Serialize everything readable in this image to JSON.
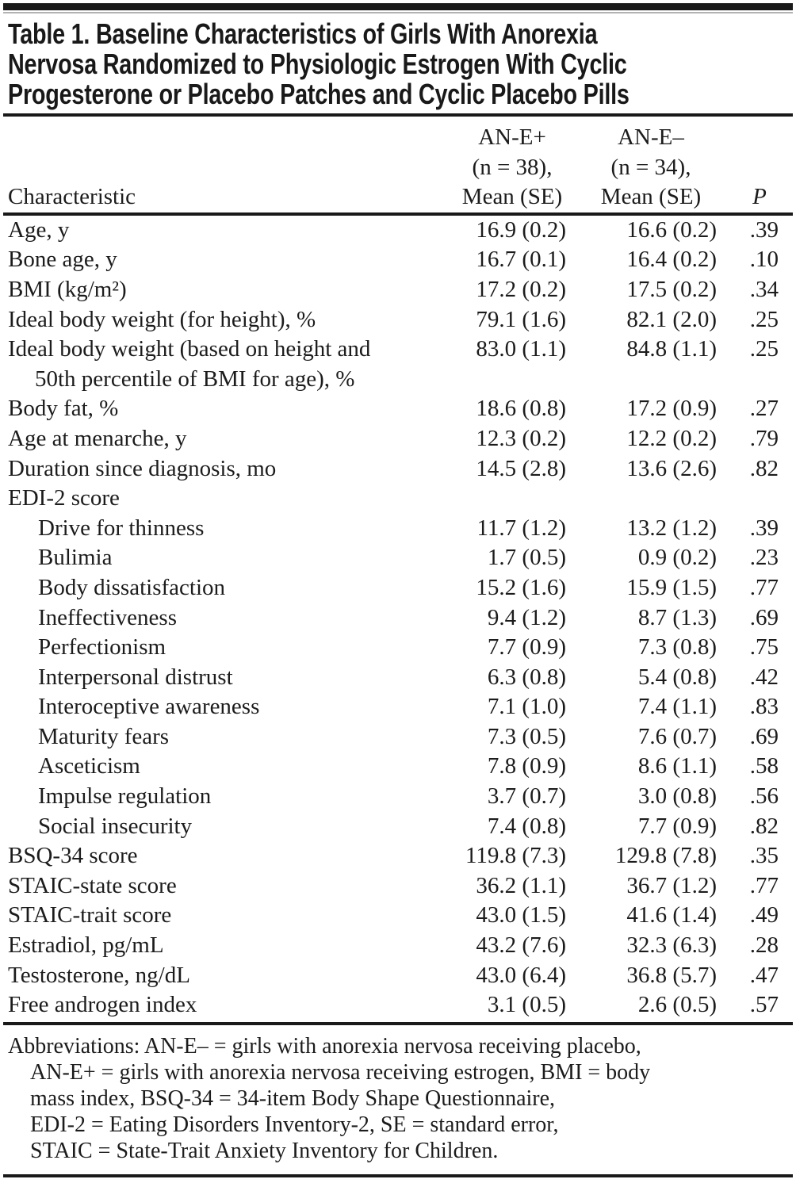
{
  "colors": {
    "background": "#ffffff",
    "text": "#1c1c1c",
    "rule": "#191919"
  },
  "table": {
    "title_lines": [
      "Table 1. Baseline Characteristics of Girls With Anorexia",
      "Nervosa Randomized to Physiologic Estrogen With Cyclic",
      "Progesterone or Placebo Patches and Cyclic Placebo Pills"
    ],
    "columns": {
      "characteristic": "Characteristic",
      "group1": {
        "line1": "AN-E+",
        "line2": "(n = 38),",
        "line3": "Mean (SE)"
      },
      "group2": {
        "line1": "AN-E–",
        "line2": "(n = 34),",
        "line3": "Mean (SE)"
      },
      "p": "P"
    },
    "rows": [
      {
        "label": "Age, y",
        "indent": 0,
        "values": [
          "16.9 (0.2)",
          "16.6 (0.2)",
          ".39"
        ]
      },
      {
        "label": "Bone age, y",
        "indent": 0,
        "values": [
          "16.7 (0.1)",
          "16.4 (0.2)",
          ".10"
        ]
      },
      {
        "label": "BMI (kg/m²)",
        "indent": 0,
        "values": [
          "17.2 (0.2)",
          "17.5 (0.2)",
          ".34"
        ]
      },
      {
        "label": "Ideal body weight (for height), %",
        "indent": 0,
        "values": [
          "79.1 (1.6)",
          "82.1 (2.0)",
          ".25"
        ]
      },
      {
        "label": "Ideal body weight (based on height and\n50th percentile of BMI for age), %",
        "indent": 0,
        "values": [
          "83.0 (1.1)",
          "84.8 (1.1)",
          ".25"
        ]
      },
      {
        "label": "Body fat, %",
        "indent": 0,
        "values": [
          "18.6 (0.8)",
          "17.2 (0.9)",
          ".27"
        ]
      },
      {
        "label": "Age at menarche, y",
        "indent": 0,
        "values": [
          "12.3 (0.2)",
          "12.2 (0.2)",
          ".79"
        ]
      },
      {
        "label": "Duration since diagnosis, mo",
        "indent": 0,
        "values": [
          "14.5 (2.8)",
          "13.6 (2.6)",
          ".82"
        ]
      },
      {
        "label": "EDI-2 score",
        "indent": 0,
        "values": [
          "",
          "",
          ""
        ]
      },
      {
        "label": "Drive for thinness",
        "indent": 1,
        "values": [
          "11.7 (1.2)",
          "13.2 (1.2)",
          ".39"
        ]
      },
      {
        "label": "Bulimia",
        "indent": 1,
        "values": [
          "1.7 (0.5)",
          "0.9 (0.2)",
          ".23"
        ]
      },
      {
        "label": "Body dissatisfaction",
        "indent": 1,
        "values": [
          "15.2 (1.6)",
          "15.9 (1.5)",
          ".77"
        ]
      },
      {
        "label": "Ineffectiveness",
        "indent": 1,
        "values": [
          "9.4 (1.2)",
          "8.7 (1.3)",
          ".69"
        ]
      },
      {
        "label": "Perfectionism",
        "indent": 1,
        "values": [
          "7.7 (0.9)",
          "7.3 (0.8)",
          ".75"
        ]
      },
      {
        "label": "Interpersonal distrust",
        "indent": 1,
        "values": [
          "6.3 (0.8)",
          "5.4 (0.8)",
          ".42"
        ]
      },
      {
        "label": "Interoceptive awareness",
        "indent": 1,
        "values": [
          "7.1 (1.0)",
          "7.4 (1.1)",
          ".83"
        ]
      },
      {
        "label": "Maturity fears",
        "indent": 1,
        "values": [
          "7.3 (0.5)",
          "7.6 (0.7)",
          ".69"
        ]
      },
      {
        "label": "Asceticism",
        "indent": 1,
        "values": [
          "7.8 (0.9)",
          "8.6 (1.1)",
          ".58"
        ]
      },
      {
        "label": "Impulse regulation",
        "indent": 1,
        "values": [
          "3.7 (0.7)",
          "3.0 (0.8)",
          ".56"
        ]
      },
      {
        "label": "Social insecurity",
        "indent": 1,
        "values": [
          "7.4 (0.8)",
          "7.7 (0.9)",
          ".82"
        ]
      },
      {
        "label": "BSQ-34 score",
        "indent": 0,
        "values": [
          "119.8 (7.3)",
          "129.8 (7.8)",
          ".35"
        ]
      },
      {
        "label": "STAIC-state score",
        "indent": 0,
        "values": [
          "36.2 (1.1)",
          "36.7 (1.2)",
          ".77"
        ]
      },
      {
        "label": "STAIC-trait score",
        "indent": 0,
        "values": [
          "43.0 (1.5)",
          "41.6 (1.4)",
          ".49"
        ]
      },
      {
        "label": "Estradiol, pg/mL",
        "indent": 0,
        "values": [
          "43.2 (7.6)",
          "32.3 (6.3)",
          ".28"
        ]
      },
      {
        "label": "Testosterone, ng/dL",
        "indent": 0,
        "values": [
          "43.0 (6.4)",
          "36.8 (5.7)",
          ".47"
        ]
      },
      {
        "label": "Free androgen index",
        "indent": 0,
        "values": [
          "3.1 (0.5)",
          "2.6 (0.5)",
          ".57"
        ]
      }
    ],
    "footnote_lines": [
      "Abbreviations: AN-E– = girls with anorexia nervosa receiving placebo,",
      "AN-E+ = girls with anorexia nervosa receiving estrogen, BMI = body",
      "mass index, BSQ-34 = 34-item Body Shape Questionnaire,",
      "EDI-2 = Eating Disorders Inventory-2, SE = standard error,",
      "STAIC = State-Trait Anxiety Inventory for Children."
    ]
  }
}
